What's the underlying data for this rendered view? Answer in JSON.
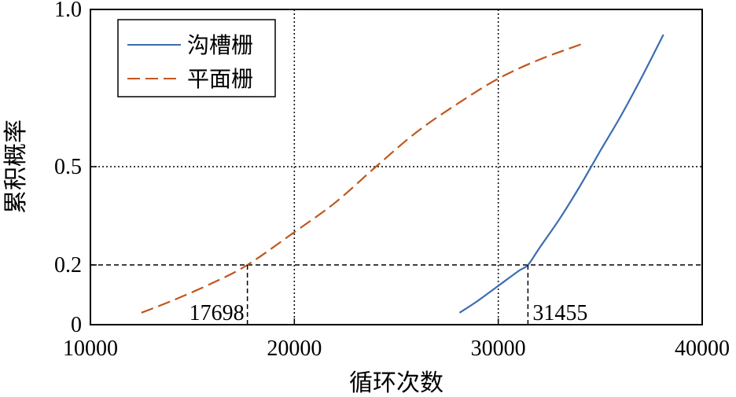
{
  "chart_data": {
    "type": "line",
    "xlabel": "循环次数",
    "ylabel": "累积概率",
    "xlim": [
      10000,
      40000
    ],
    "ylim": [
      0,
      1
    ],
    "y_scale": "normal-probability",
    "x_ticks": [
      10000,
      20000,
      30000,
      40000
    ],
    "y_ticks": [
      0,
      0.2,
      0.5,
      1.0
    ],
    "x_tick_labels": [
      "10000",
      "20000",
      "30000",
      "40000"
    ],
    "y_tick_labels": [
      "0",
      "0.2",
      "0.5",
      "1.0"
    ],
    "grid": "dotted",
    "legend": "top-left",
    "series": [
      {
        "name": "沟槽栅",
        "color": "#3d6cb1",
        "dash": "solid",
        "x": [
          28100,
          29000,
          30000,
          31000,
          31455,
          32000,
          33000,
          34000,
          35000,
          36000,
          37000,
          38100
        ],
        "y": [
          0.04,
          0.08,
          0.13,
          0.18,
          0.2,
          0.25,
          0.34,
          0.44,
          0.55,
          0.66,
          0.78,
          0.92
        ]
      },
      {
        "name": "平面栅",
        "color": "#c0571f",
        "dash": "dashed",
        "x": [
          12500,
          14000,
          16000,
          17698,
          20000,
          22000,
          24000,
          26000,
          28000,
          30000,
          32000,
          34100
        ],
        "y": [
          0.04,
          0.08,
          0.14,
          0.2,
          0.3,
          0.39,
          0.5,
          0.61,
          0.7,
          0.78,
          0.84,
          0.89
        ]
      }
    ],
    "reference_lines": {
      "h": [
        0.2,
        0.5
      ],
      "v": [
        20000,
        30000
      ]
    },
    "annotations": [
      {
        "label": "17698",
        "x": 17698,
        "y": 0.2
      },
      {
        "label": "31455",
        "x": 31455,
        "y": 0.2
      }
    ]
  }
}
